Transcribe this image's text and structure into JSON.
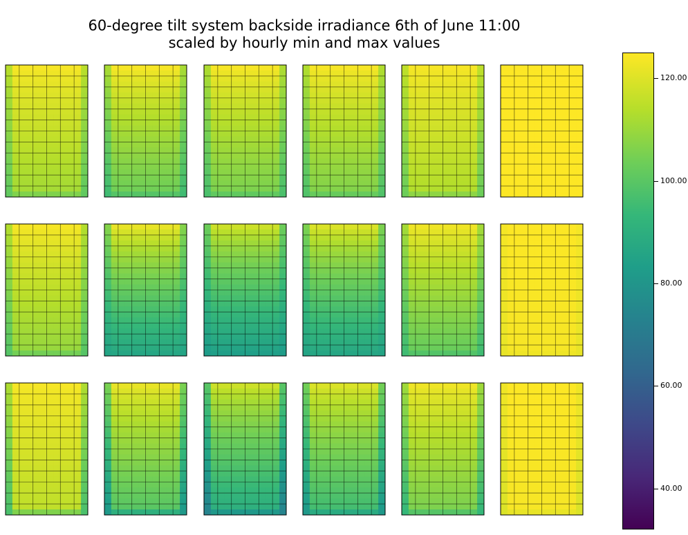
{
  "chart_data": {
    "type": "heatmap",
    "title_line1": "60-degree tilt system backside irradiance 6th of June 11:00",
    "title_line2": "scaled by hourly min and max values",
    "rows": 3,
    "cols": 6,
    "colormap": "viridis",
    "color_range": [
      32,
      125
    ],
    "colorbar_ticks": [
      "120.00",
      "100.00",
      "80.00",
      "60.00",
      "40.00"
    ],
    "colorbar_tick_values": [
      120,
      100,
      80,
      60,
      40
    ],
    "panel_grid_cells": [
      6,
      12
    ],
    "panels": [
      {
        "row": 0,
        "col": 0,
        "top": 124,
        "bottom": 112,
        "edge": 102
      },
      {
        "row": 0,
        "col": 1,
        "top": 124,
        "bottom": 104,
        "edge": 96
      },
      {
        "row": 0,
        "col": 2,
        "top": 124,
        "bottom": 106,
        "edge": 98
      },
      {
        "row": 0,
        "col": 3,
        "top": 124,
        "bottom": 107,
        "edge": 99
      },
      {
        "row": 0,
        "col": 4,
        "top": 124,
        "bottom": 114,
        "edge": 104
      },
      {
        "row": 0,
        "col": 5,
        "top": 125,
        "bottom": 125,
        "edge": 125
      },
      {
        "row": 1,
        "col": 0,
        "top": 124,
        "bottom": 110,
        "edge": 100
      },
      {
        "row": 1,
        "col": 1,
        "top": 122,
        "bottom": 88,
        "edge": 86
      },
      {
        "row": 1,
        "col": 2,
        "top": 118,
        "bottom": 85,
        "edge": 83
      },
      {
        "row": 1,
        "col": 3,
        "top": 120,
        "bottom": 88,
        "edge": 86
      },
      {
        "row": 1,
        "col": 4,
        "top": 123,
        "bottom": 103,
        "edge": 96
      },
      {
        "row": 1,
        "col": 5,
        "top": 125,
        "bottom": 124,
        "edge": 122
      },
      {
        "row": 2,
        "col": 0,
        "top": 124,
        "bottom": 116,
        "edge": 98
      },
      {
        "row": 2,
        "col": 1,
        "top": 122,
        "bottom": 100,
        "edge": 82
      },
      {
        "row": 2,
        "col": 2,
        "top": 118,
        "bottom": 90,
        "edge": 74
      },
      {
        "row": 2,
        "col": 3,
        "top": 120,
        "bottom": 96,
        "edge": 82
      },
      {
        "row": 2,
        "col": 4,
        "top": 123,
        "bottom": 106,
        "edge": 94
      },
      {
        "row": 2,
        "col": 5,
        "top": 125,
        "bottom": 124,
        "edge": 120
      }
    ]
  }
}
